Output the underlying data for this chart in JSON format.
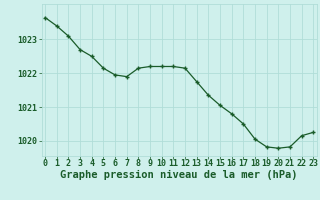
{
  "x": [
    0,
    1,
    2,
    3,
    4,
    5,
    6,
    7,
    8,
    9,
    10,
    11,
    12,
    13,
    14,
    15,
    16,
    17,
    18,
    19,
    20,
    21,
    22,
    23
  ],
  "y": [
    1023.65,
    1023.4,
    1023.1,
    1022.7,
    1022.5,
    1022.15,
    1021.95,
    1021.9,
    1022.15,
    1022.2,
    1022.2,
    1022.2,
    1022.15,
    1021.75,
    1021.35,
    1021.05,
    1020.8,
    1020.5,
    1020.05,
    1019.82,
    1019.78,
    1019.82,
    1020.15,
    1020.25
  ],
  "xlim": [
    -0.3,
    23.3
  ],
  "ylim": [
    1019.55,
    1024.05
  ],
  "yticks": [
    1020,
    1021,
    1022,
    1023
  ],
  "xticks": [
    0,
    1,
    2,
    3,
    4,
    5,
    6,
    7,
    8,
    9,
    10,
    11,
    12,
    13,
    14,
    15,
    16,
    17,
    18,
    19,
    20,
    21,
    22,
    23
  ],
  "xlabel": "Graphe pression niveau de la mer (hPa)",
  "line_color": "#1a5c2a",
  "marker_color": "#1a5c2a",
  "bg_color": "#cff0ec",
  "grid_color": "#b0ddd8",
  "text_color": "#1a5c2a",
  "tick_fontsize": 6.0,
  "xlabel_fontsize": 7.5
}
